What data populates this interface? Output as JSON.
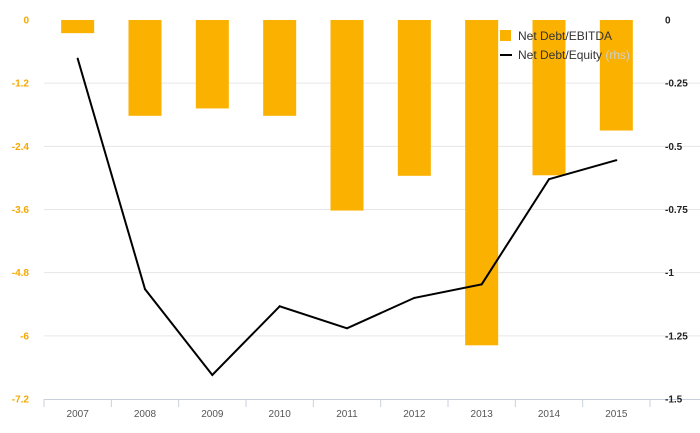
{
  "chart_data": {
    "type": "bar",
    "categories": [
      "2007",
      "2008",
      "2009",
      "2010",
      "2011",
      "2012",
      "2013",
      "2014",
      "2015"
    ],
    "series": [
      {
        "name": "Net Debt/EBITDA",
        "type": "bar",
        "axis": "left",
        "color": "#FBB100",
        "values": [
          -0.25,
          -1.82,
          -1.68,
          -1.82,
          -3.62,
          -2.96,
          -6.18,
          -2.95,
          -2.1
        ]
      },
      {
        "name": "Net Debt/Equity",
        "legend_suffix": "(rhs)",
        "type": "line",
        "axis": "right",
        "color": "#000000",
        "values": [
          -0.153,
          -1.065,
          -1.405,
          -1.133,
          -1.22,
          -1.1,
          -1.046,
          -0.63,
          -0.555
        ]
      }
    ],
    "y_left": {
      "ylim": [
        -7.2,
        0
      ],
      "ticks": [
        "0",
        "-1.2",
        "-2.4",
        "-3.6",
        "-4.8",
        "-6",
        "-7.2"
      ],
      "tick_color": "#F5A800"
    },
    "y_right": {
      "ylim": [
        -1.5,
        0
      ],
      "ticks": [
        "0",
        "-0.25",
        "-0.5",
        "-0.75",
        "-1",
        "-1.25",
        "-1.5"
      ]
    },
    "grid": true,
    "legend_position": "top-right"
  }
}
